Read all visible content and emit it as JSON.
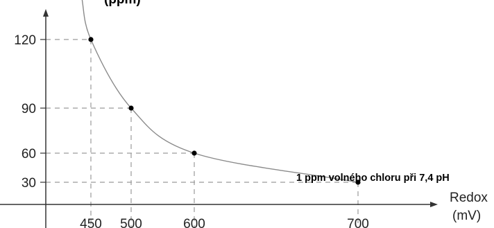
{
  "chart_data": {
    "type": "line",
    "title": "(ppm)",
    "xlabel_line1": "Redox",
    "xlabel_line2": "(mV)",
    "annotation": "1 ppm volného chloru při 7,4 pH",
    "x": [
      450,
      500,
      600,
      700
    ],
    "y": [
      120,
      90,
      60,
      30
    ],
    "x_ticks": [
      "450",
      "500",
      "600",
      "700"
    ],
    "y_ticks": [
      "120",
      "90",
      "60",
      "30"
    ],
    "grid": "dashed drop lines from each point to both axes",
    "colors": {
      "curve": "#8a8a8a",
      "points": "#000000",
      "guides": "#9a9a9a",
      "axes": "#333333"
    }
  }
}
